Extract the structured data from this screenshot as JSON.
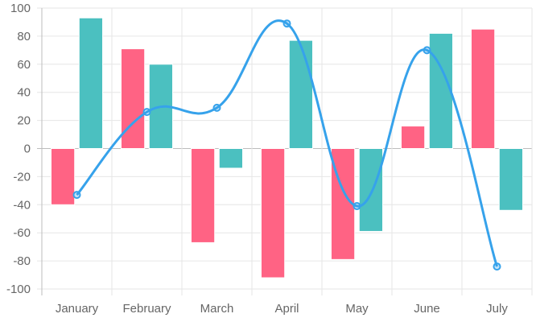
{
  "chart_data": {
    "type": "bar",
    "categories": [
      "January",
      "February",
      "March",
      "April",
      "May",
      "June",
      "July"
    ],
    "y_ticks": [
      "100",
      "80",
      "60",
      "40",
      "20",
      "0",
      "-20",
      "-40",
      "-60",
      "-80",
      "-100"
    ],
    "ylim": [
      -100,
      100
    ],
    "grid": true,
    "series": [
      {
        "type": "bar",
        "color": "#ff6384",
        "values": [
          -40,
          71,
          -67,
          -92,
          -79,
          16,
          85
        ]
      },
      {
        "type": "bar",
        "color": "#4bc0c0",
        "values": [
          93,
          60,
          -14,
          77,
          -59,
          82,
          -44
        ]
      },
      {
        "type": "line",
        "color": "#36a2eb",
        "smooth": true,
        "values": [
          -33,
          26,
          29,
          89,
          -41,
          70,
          -84
        ]
      }
    ]
  }
}
